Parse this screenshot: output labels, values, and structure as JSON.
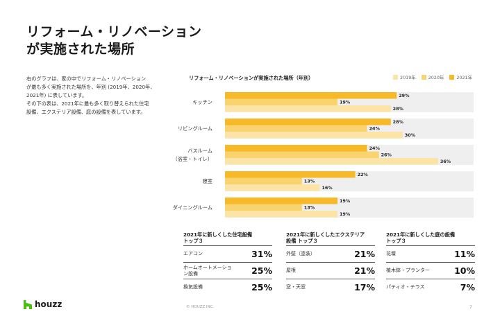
{
  "page": {
    "title_lines": [
      "リフォーム・リノベーション",
      "が実施された場所"
    ],
    "intro_lines": [
      "右のグラフは、家の中でリフォーム・リノベーション",
      "が最も多く実施された場所を、年別 (2019年、2020年、",
      "2021年) に表しています。",
      "その下の表は、2021年に最も多く取り替えられた住宅",
      "設備、エクステリア設備、庭の設備を表しています。"
    ],
    "copyright": "© HOUZZ INC.",
    "page_number": "7",
    "logo_text": "houzz"
  },
  "colors": {
    "y2019": "#FCE3A6",
    "y2020": "#F9D36E",
    "y2021": "#F7B928",
    "track": "#EFEFEF"
  },
  "chart_data": {
    "type": "bar",
    "orientation": "horizontal",
    "title": "リフォーム・リノベーションが実施された場所（年別）",
    "categories": [
      {
        "lines": [
          "キッチン"
        ]
      },
      {
        "lines": [
          "リビングルーム"
        ]
      },
      {
        "lines": [
          "バスルーム",
          "（浴室・トイレ）"
        ]
      },
      {
        "lines": [
          "寝室"
        ]
      },
      {
        "lines": [
          "ダイニングルーム"
        ]
      }
    ],
    "series": [
      {
        "name": "2021年",
        "color": "#F7B928",
        "values": [
          29,
          28,
          24,
          22,
          19
        ]
      },
      {
        "name": "2020年",
        "color": "#F9D36E",
        "values": [
          19,
          24,
          26,
          13,
          13
        ]
      },
      {
        "name": "2019年",
        "color": "#FCE3A6",
        "values": [
          28,
          30,
          36,
          16,
          19
        ]
      }
    ],
    "legend_order": [
      "2019年",
      "2020年",
      "2021年"
    ],
    "value_suffix": "%",
    "xlim": [
      0,
      42
    ],
    "legend_position": "top-right",
    "grid": false
  },
  "tables": [
    {
      "title_lines": [
        "2021年に新しくした住宅設備",
        "トップ３"
      ],
      "rows": [
        {
          "label_lines": [
            "エアコン"
          ],
          "value": "31%"
        },
        {
          "label_lines": [
            "ホームオートメーショ",
            "ン設備"
          ],
          "value": "25%"
        },
        {
          "label_lines": [
            "換気設備"
          ],
          "value": "25%"
        }
      ]
    },
    {
      "title_lines": [
        "2021年に新しくしたエクステリア",
        "設備 トップ３"
      ],
      "rows": [
        {
          "label_lines": [
            "外壁（塗装）"
          ],
          "value": "21%"
        },
        {
          "label_lines": [
            "屋根"
          ],
          "value": "21%"
        },
        {
          "label_lines": [
            "窓・天窓"
          ],
          "value": "17%"
        }
      ]
    },
    {
      "title_lines": [
        "2021年に新しくした庭の設備",
        "トップ３"
      ],
      "rows": [
        {
          "label_lines": [
            "花壇"
          ],
          "value": "11%"
        },
        {
          "label_lines": [
            "植木鉢・プランター"
          ],
          "value": "10%"
        },
        {
          "label_lines": [
            "パティオ・テラス"
          ],
          "value": "7%"
        }
      ]
    }
  ]
}
